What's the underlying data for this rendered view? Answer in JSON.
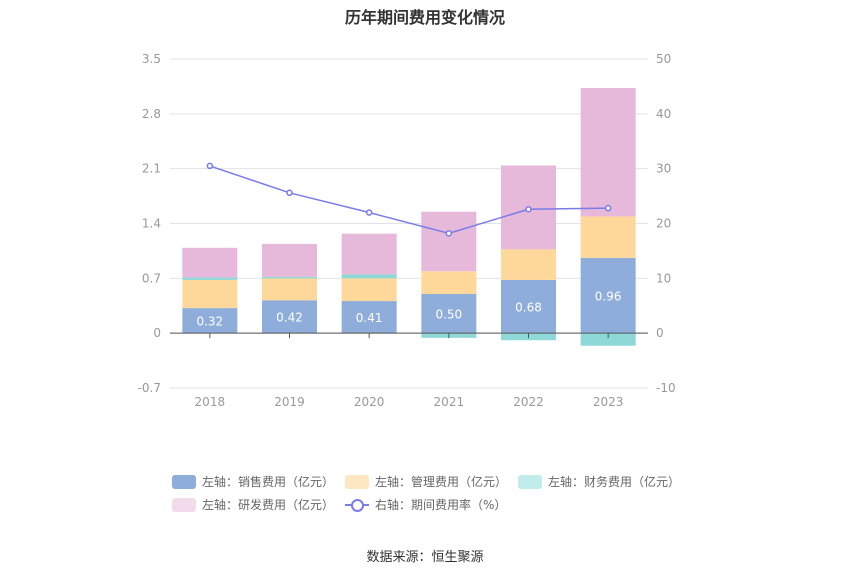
{
  "title": "历年期间费用变化情况",
  "source": "数据来源：恒生聚源",
  "colors": {
    "sales": "#8eaddb",
    "management": "#fdd89a",
    "finance": "#8ed8d8",
    "rnd": "#e6b8da",
    "rate": "#7b7be8"
  },
  "legend": [
    {
      "label": "左轴：销售费用（亿元）",
      "kind": "bar",
      "color": "#8eaddb"
    },
    {
      "label": "左轴：管理费用（亿元）",
      "kind": "bar",
      "color": "#fde6c2"
    },
    {
      "label": "左轴：财务费用（亿元）",
      "kind": "bar",
      "color": "#c2ebeb"
    },
    {
      "label": "左轴：研发费用（亿元）",
      "kind": "bar",
      "color": "#f2dcec"
    },
    {
      "label": "右轴：期间费用率（%）",
      "kind": "line",
      "color": "#7b7be8"
    }
  ],
  "chart_data": {
    "type": "bar",
    "stacked": true,
    "categories": [
      "2018",
      "2019",
      "2020",
      "2021",
      "2022",
      "2023"
    ],
    "series": [
      {
        "name": "左轴：销售费用（亿元）",
        "axis": "left",
        "values": [
          0.32,
          0.42,
          0.41,
          0.5,
          0.68,
          0.96
        ],
        "show_labels": true
      },
      {
        "name": "左轴：管理费用（亿元）",
        "axis": "left",
        "values": [
          0.36,
          0.28,
          0.29,
          0.29,
          0.39,
          0.53
        ]
      },
      {
        "name": "左轴：财务费用（亿元）",
        "axis": "left",
        "values": [
          0.03,
          0.02,
          0.05,
          -0.06,
          -0.09,
          -0.16
        ]
      },
      {
        "name": "左轴：研发费用（亿元）",
        "axis": "left",
        "values": [
          0.38,
          0.42,
          0.52,
          0.76,
          1.07,
          1.64
        ]
      },
      {
        "name": "右轴：期间费用率（%）",
        "axis": "right",
        "type": "line",
        "values": [
          30.5,
          25.6,
          22.0,
          18.2,
          22.6,
          22.8
        ]
      }
    ],
    "y_left": {
      "min": -0.7,
      "max": 3.5,
      "ticks": [
        "-0.7",
        "0",
        "0.7",
        "1.4",
        "2.1",
        "2.8",
        "3.5"
      ]
    },
    "y_right": {
      "min": -10,
      "max": 50,
      "ticks": [
        "-10",
        "0",
        "10",
        "20",
        "30",
        "40",
        "50"
      ]
    },
    "grid": true,
    "legend_position": "bottom"
  }
}
